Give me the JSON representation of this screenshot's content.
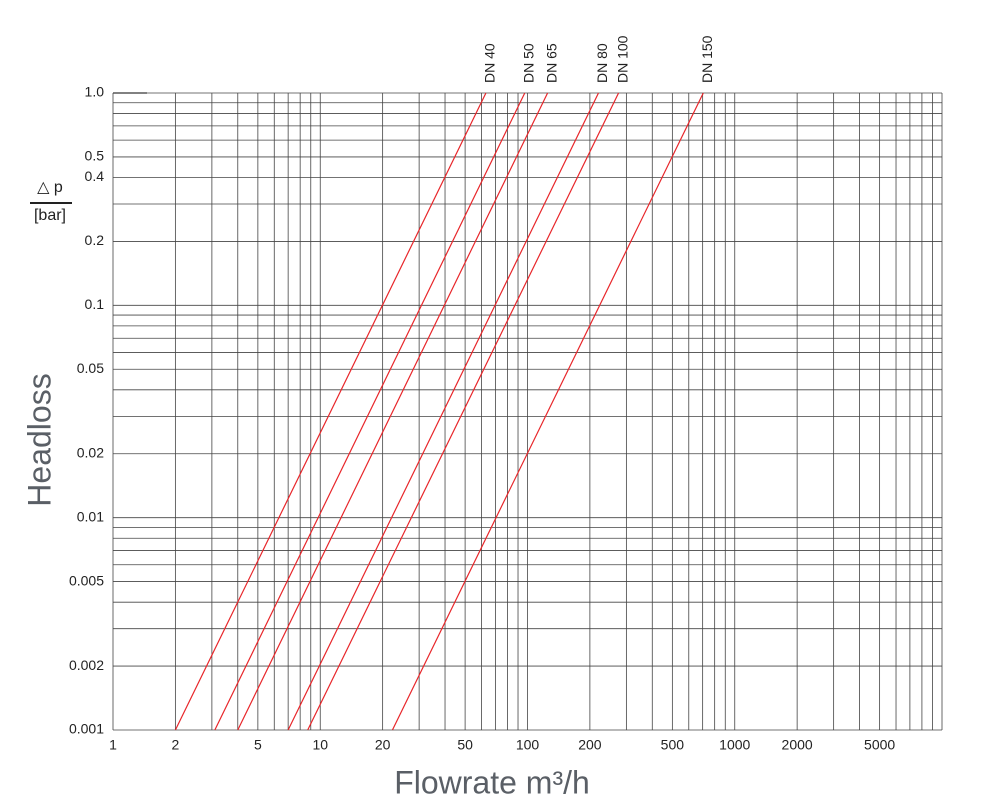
{
  "chart_data": {
    "type": "line",
    "x_label": "Flowrate m³/h",
    "y_label": "Headloss",
    "y_unit_top": "△ p",
    "y_unit_bottom": "[bar]",
    "xscale": "log",
    "yscale": "log",
    "grid": true,
    "xlim": [
      1,
      10000
    ],
    "ylim": [
      0.001,
      1
    ],
    "xticks": [
      1,
      2,
      5,
      10,
      20,
      50,
      100,
      200,
      500,
      1000,
      2000,
      5000
    ],
    "yticks": [
      0.001,
      0.002,
      0.005,
      0.01,
      0.02,
      0.05,
      0.1,
      0.2,
      0.4,
      0.5,
      {
        "value": 1,
        "label": "1.0"
      }
    ],
    "xgrid": [
      1,
      2,
      3,
      4,
      5,
      6,
      7,
      8,
      9,
      10,
      20,
      30,
      40,
      50,
      60,
      70,
      80,
      90,
      100,
      200,
      300,
      400,
      500,
      600,
      700,
      800,
      900,
      1000,
      2000,
      3000,
      4000,
      5000,
      6000,
      7000,
      8000,
      9000,
      10000
    ],
    "ygrid": [
      0.001,
      0.002,
      0.003,
      0.004,
      0.005,
      0.006,
      0.007,
      0.008,
      0.009,
      0.01,
      0.02,
      0.03,
      0.04,
      0.05,
      0.06,
      0.07,
      0.08,
      0.09,
      0.1,
      0.2,
      0.3,
      0.4,
      0.5,
      0.6,
      0.7,
      0.8,
      0.9,
      1
    ],
    "series": [
      {
        "name": "DN 40",
        "color": "#e8262a",
        "x": [
          2,
          63
        ],
        "values": [
          0.001,
          1
        ]
      },
      {
        "name": "DN 50",
        "color": "#e8262a",
        "x": [
          3.1,
          97
        ],
        "values": [
          0.001,
          1
        ]
      },
      {
        "name": "DN 65",
        "color": "#e8262a",
        "x": [
          4,
          125
        ],
        "values": [
          0.001,
          1
        ]
      },
      {
        "name": "DN 80",
        "color": "#e8262a",
        "x": [
          7,
          220
        ],
        "values": [
          0.001,
          1
        ]
      },
      {
        "name": "DN 100",
        "color": "#e8262a",
        "x": [
          8.7,
          275
        ],
        "values": [
          0.001,
          1
        ]
      },
      {
        "name": "DN 150",
        "color": "#e8262a",
        "x": [
          22.3,
          705
        ],
        "values": [
          0.001,
          1
        ]
      }
    ]
  }
}
